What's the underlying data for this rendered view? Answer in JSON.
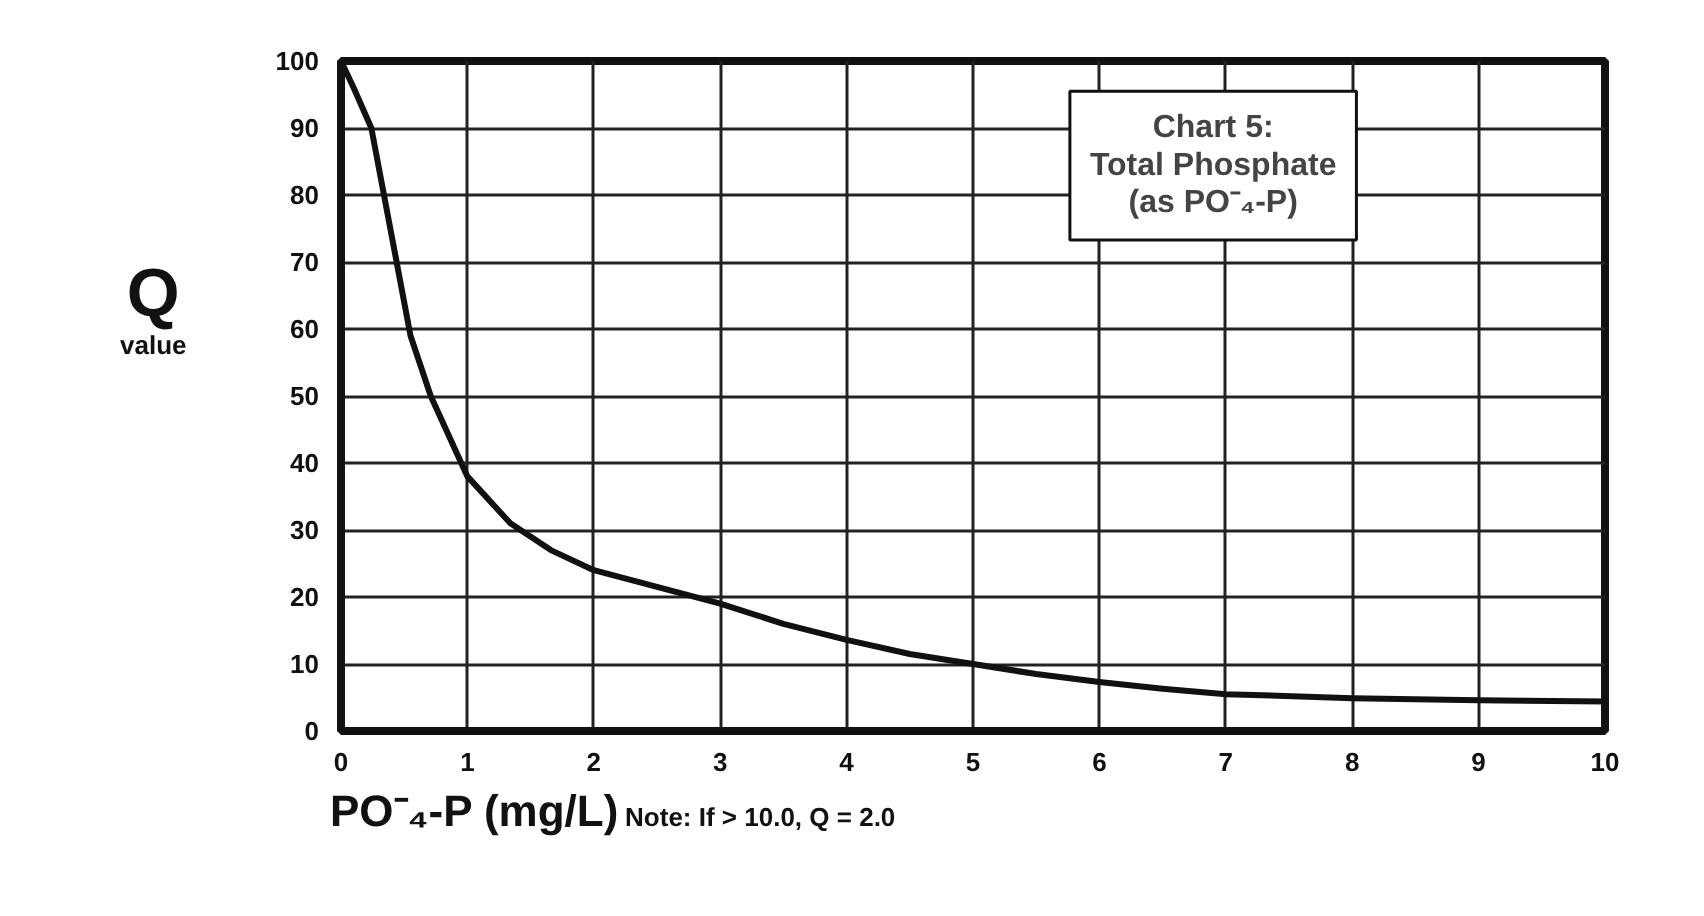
{
  "chart_data": {
    "type": "line",
    "title": "Chart 5:\nTotal Phosphate\n(as PO⁻₄-P)",
    "xlabel": "PO⁻₄-P (mg/L)",
    "ylabel": "Q value",
    "annotations": [
      "Note: If > 10.0, Q = 2.0"
    ],
    "series": [
      {
        "color": "#111111",
        "x": [
          0,
          0.1,
          0.24,
          0.39,
          0.55,
          0.71,
          1,
          1.34,
          1.66,
          2,
          2.5,
          3,
          3.5,
          4,
          4.5,
          5,
          5.5,
          6,
          6.5,
          7,
          8,
          9,
          10
        ],
        "values": [
          100,
          96,
          90,
          75,
          59,
          50,
          38,
          31,
          27,
          24,
          21.5,
          19,
          16,
          13.6,
          11.5,
          10,
          8.5,
          7.3,
          6.3,
          5.5,
          4.9,
          4.6,
          4.4
        ]
      }
    ],
    "xlim": [
      0,
      10
    ],
    "ylim": [
      0,
      100
    ],
    "xticks": [
      0,
      1,
      2,
      3,
      4,
      5,
      6,
      7,
      8,
      9,
      10
    ],
    "yticks": [
      0,
      10,
      20,
      30,
      40,
      50,
      60,
      70,
      80,
      90,
      100
    ],
    "grid": true,
    "line_style": "solid",
    "marker": "none"
  }
}
